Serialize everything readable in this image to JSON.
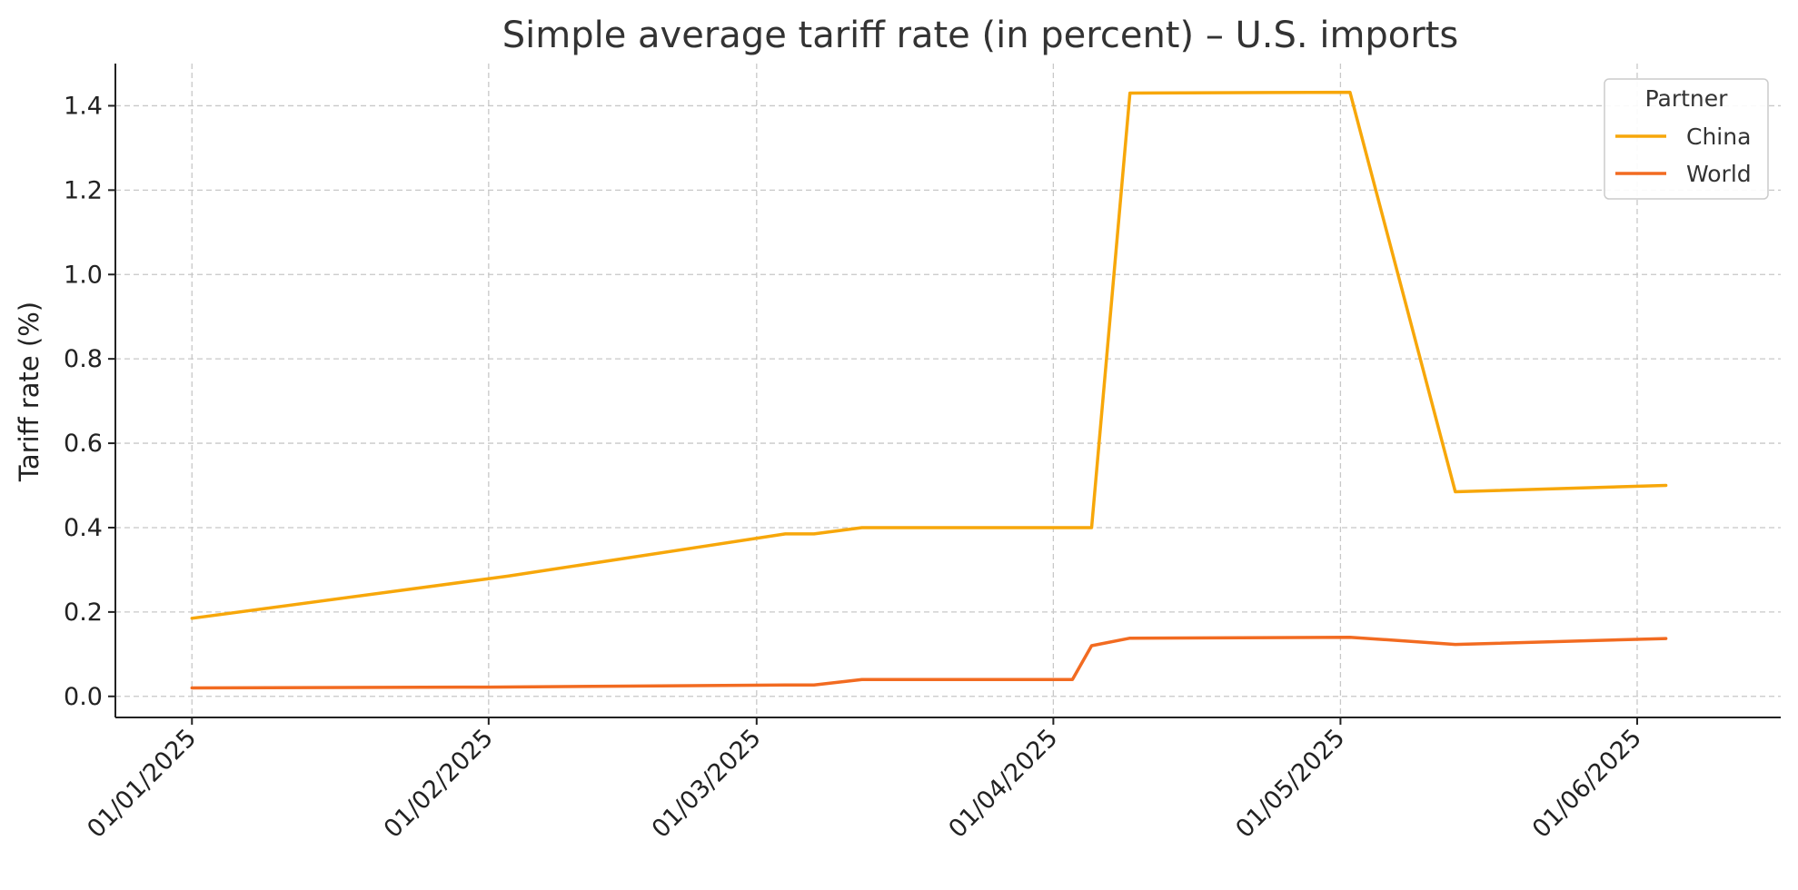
{
  "chart_data": {
    "type": "line",
    "title": "Simple average tariff rate (in percent) – U.S. imports",
    "xlabel": "",
    "ylabel": "Tariff rate (%)",
    "ylim": [
      -0.05,
      1.5
    ],
    "xlim": [
      "2024-12-24",
      "2025-06-16"
    ],
    "yticks": [
      0.0,
      0.2,
      0.4,
      0.6,
      0.8,
      1.0,
      1.2,
      1.4
    ],
    "ytick_labels": [
      "0.0",
      "0.2",
      "0.4",
      "0.6",
      "0.8",
      "1.0",
      "1.2",
      "1.4"
    ],
    "xticks": [
      "2025-01-01",
      "2025-02-01",
      "2025-03-01",
      "2025-04-01",
      "2025-05-01",
      "2025-06-01"
    ],
    "xtick_labels": [
      "01/01/2025",
      "01/02/2025",
      "01/03/2025",
      "01/04/2025",
      "01/05/2025",
      "01/06/2025"
    ],
    "grid": true,
    "legend": {
      "title": "Partner",
      "placement": "top-right"
    },
    "series": [
      {
        "name": "China",
        "color": "#F7A70A",
        "points": [
          [
            "2025-01-01",
            0.185
          ],
          [
            "2025-02-03",
            0.285
          ],
          [
            "2025-03-04",
            0.385
          ],
          [
            "2025-03-07",
            0.385
          ],
          [
            "2025-03-12",
            0.4
          ],
          [
            "2025-04-05",
            0.4
          ],
          [
            "2025-04-09",
            1.43
          ],
          [
            "2025-05-02",
            1.432
          ],
          [
            "2025-05-13",
            0.485
          ],
          [
            "2025-06-04",
            0.5
          ]
        ]
      },
      {
        "name": "World",
        "color": "#F26B21",
        "points": [
          [
            "2025-01-01",
            0.02
          ],
          [
            "2025-02-01",
            0.022
          ],
          [
            "2025-03-04",
            0.027
          ],
          [
            "2025-03-07",
            0.027
          ],
          [
            "2025-03-12",
            0.04
          ],
          [
            "2025-04-03",
            0.04
          ],
          [
            "2025-04-05",
            0.12
          ],
          [
            "2025-04-09",
            0.138
          ],
          [
            "2025-05-02",
            0.14
          ],
          [
            "2025-05-13",
            0.123
          ],
          [
            "2025-06-04",
            0.137
          ]
        ]
      }
    ]
  }
}
